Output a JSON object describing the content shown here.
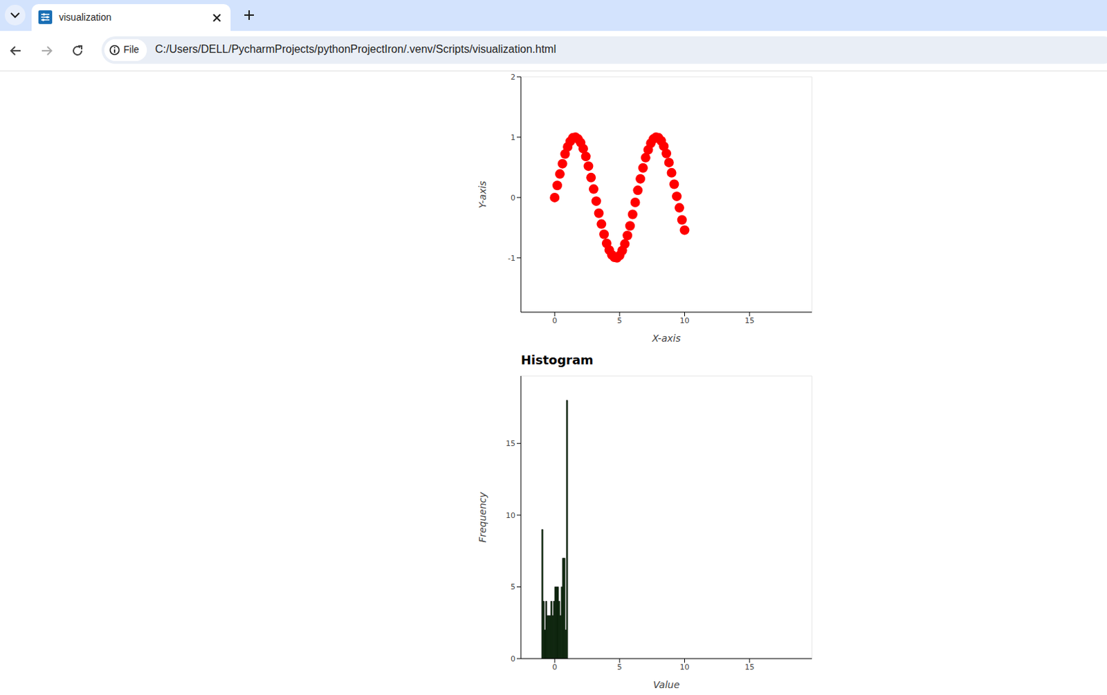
{
  "browser": {
    "tab_title": "visualization",
    "scheme_label": "File",
    "url": "C:/Users/DELL/PycharmProjects/pythonProjectIron/.venv/Scripts/visualization.html"
  },
  "chart_data": [
    {
      "type": "scatter",
      "x_label": "X-axis",
      "y_label": "Y-axis",
      "x": [
        0,
        0.2,
        0.4,
        0.6,
        0.8,
        1.0,
        1.2,
        1.4,
        1.6,
        1.8,
        2.0,
        2.2,
        2.4,
        2.6,
        2.8,
        3.0,
        3.2,
        3.4,
        3.6,
        3.8,
        4.0,
        4.2,
        4.4,
        4.6,
        4.8,
        5.0,
        5.2,
        5.4,
        5.6,
        5.8,
        6.0,
        6.2,
        6.4,
        6.6,
        6.8,
        7.0,
        7.2,
        7.4,
        7.6,
        7.8,
        8.0,
        8.2,
        8.4,
        8.6,
        8.8,
        9.0,
        9.2,
        9.4,
        9.6,
        9.8,
        10.0
      ],
      "values": [
        0,
        0.2,
        0.39,
        0.56,
        0.72,
        0.84,
        0.93,
        0.99,
        1.0,
        0.97,
        0.91,
        0.81,
        0.68,
        0.52,
        0.33,
        0.14,
        -0.06,
        -0.26,
        -0.44,
        -0.61,
        -0.76,
        -0.87,
        -0.95,
        -0.99,
        -1.0,
        -0.96,
        -0.88,
        -0.77,
        -0.63,
        -0.47,
        -0.28,
        -0.08,
        0.12,
        0.31,
        0.49,
        0.66,
        0.79,
        0.9,
        0.97,
        1.0,
        0.99,
        0.94,
        0.85,
        0.73,
        0.58,
        0.41,
        0.22,
        0.02,
        -0.17,
        -0.37,
        -0.54
      ],
      "color": "#ff0000",
      "marker": "circle",
      "xlim": [
        -2.6,
        19.8
      ],
      "ylim": [
        -1.9,
        2
      ],
      "xticks": [
        0,
        5,
        10,
        15
      ],
      "yticks": [
        -1,
        0,
        1,
        2
      ],
      "grid": false
    },
    {
      "type": "histogram",
      "title": "Histogram",
      "x_label": "Value",
      "y_label": "Frequency",
      "bins": [
        -1,
        -0.9,
        -0.8,
        -0.7,
        -0.6,
        -0.5,
        -0.4,
        -0.3,
        -0.2,
        -0.1,
        0,
        0.1,
        0.2,
        0.3,
        0.4,
        0.5,
        0.6,
        0.7,
        0.8,
        0.9,
        1
      ],
      "values": [
        9,
        4,
        2,
        4,
        3,
        3,
        3,
        4,
        3,
        4,
        5,
        5,
        5,
        4,
        3,
        5,
        7,
        7,
        2,
        18
      ],
      "color": "#123a12",
      "xlim": [
        -2.6,
        19.8
      ],
      "ylim": [
        0,
        19.7
      ],
      "xticks": [
        0,
        5,
        10,
        15
      ],
      "yticks": [
        0,
        5,
        10,
        15
      ],
      "grid": false
    }
  ]
}
